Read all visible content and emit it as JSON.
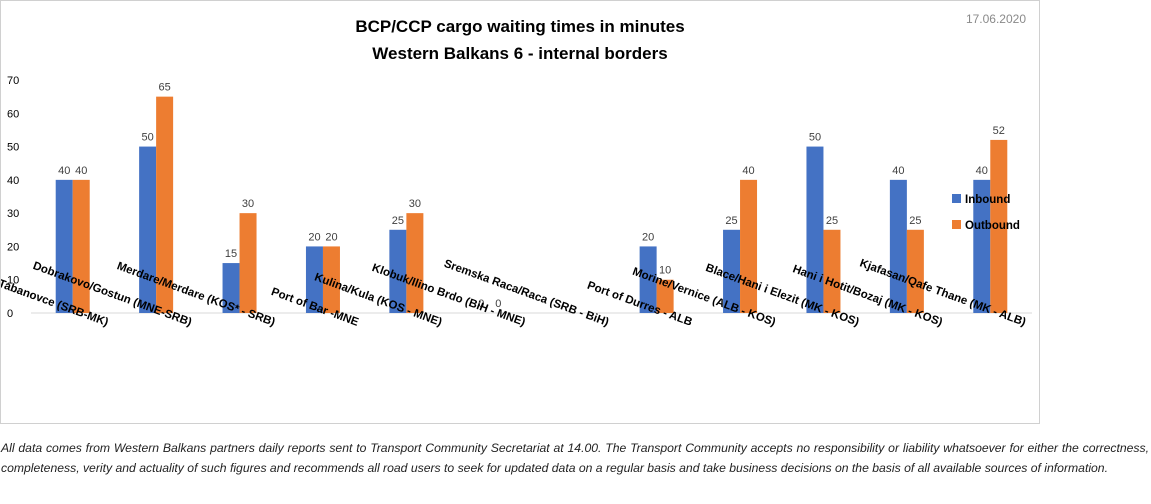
{
  "date": "17.06.2020",
  "footnote": "All data comes from Western Balkans partners daily reports sent to Transport Community Secretariat at 14.00. The Transport Community accepts no responsibility or liability whatsoever for either the correctness, completeness, verity and actuality of such figures and recommends all road users to seek for updated data on a regular basis and take business decisions on the basis of all available sources of information.",
  "chart_data": {
    "type": "bar",
    "title": [
      "BCP/CCP cargo waiting times in minutes",
      "Western Balkans 6 - internal borders"
    ],
    "categories": [
      "Presevo/ Tabanovce (SRB-MK)",
      "Dobrakovo/Gostun (MNE-SRB)",
      "Merdare/Merdare (KOS* - SRB)",
      "Port of Bar -MNE",
      "Kulina/Kula (KOS - MNE)",
      "Klobuk/Ilino Brdo (BiH - MNE)",
      "Sremska Raca/Raca (SRB - BiH)",
      "Port of Durres - ALB",
      "Morine/Vernice (ALB - KOS)",
      "Blace/Hani i Elezit (MK - KOS)",
      "Hani i Hotit/Bozaj (MK - KOS)",
      "Kjafasan/Qafe Thane (MK - ALB)"
    ],
    "series": [
      {
        "name": "Inbound",
        "color": "#4472c4",
        "values": [
          40,
          50,
          15,
          20,
          25,
          0,
          null,
          20,
          25,
          50,
          40,
          40
        ]
      },
      {
        "name": "Outbound",
        "color": "#ed7d31",
        "values": [
          40,
          65,
          30,
          20,
          30,
          0,
          null,
          10,
          40,
          25,
          25,
          52
        ]
      }
    ],
    "yticks": [
      0,
      10,
      20,
      30,
      40,
      50,
      60,
      70
    ],
    "ylim": [
      0,
      70
    ],
    "grid": false,
    "legend_position": "right"
  }
}
